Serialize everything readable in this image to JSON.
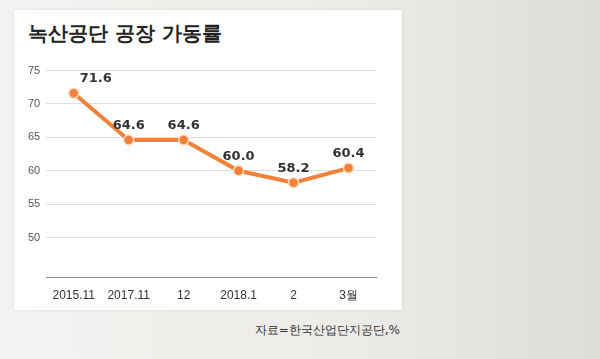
{
  "chart_data": {
    "type": "line",
    "title": "녹산공단 공장 가동률",
    "source": "자료=한국산업단지공단,%",
    "categories": [
      "2015.11",
      "2017.11",
      "12",
      "2018.1",
      "2",
      "3월"
    ],
    "values": [
      71.6,
      64.6,
      64.6,
      60.0,
      58.2,
      60.4
    ],
    "value_labels": [
      "71.6",
      "64.6",
      "64.6",
      "60.0",
      "58.2",
      "60.4"
    ],
    "data_labels": true,
    "color": "#f0823a",
    "marker": "circle",
    "line_style": "solid",
    "ylim": [
      44,
      75
    ],
    "yticks": [
      50,
      55,
      60,
      65,
      70,
      75
    ],
    "grid": true
  }
}
